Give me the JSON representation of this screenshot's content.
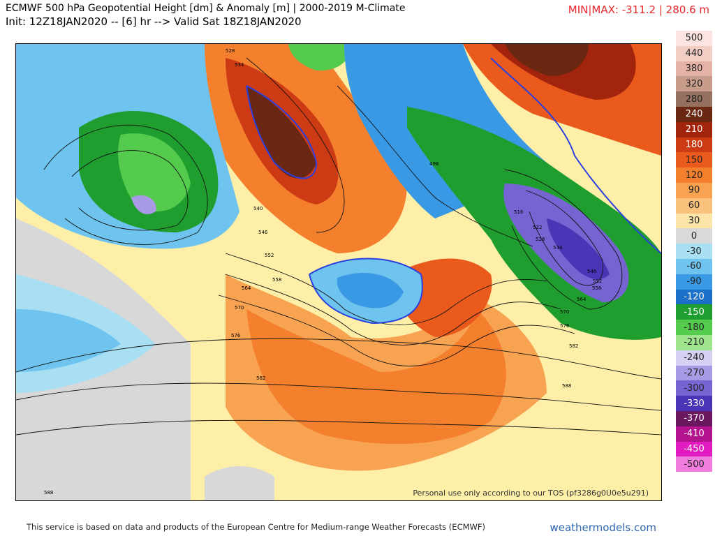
{
  "header": {
    "title": "ECMWF 500 hPa Geopotential Height [dm] & Anomaly [m] | 2000-2019 M-Climate",
    "init_line": "Init: 12Z18JAN2020 -- [6] hr --> Valid Sat 18Z18JAN2020",
    "minmax": "MIN|MAX: -311.2 | 280.6 m"
  },
  "legend": [
    {
      "label": "500",
      "color": "#fbe4e1"
    },
    {
      "label": "440",
      "color": "#f1cdc4"
    },
    {
      "label": "380",
      "color": "#e4b3a6"
    },
    {
      "label": "320",
      "color": "#c89c8b"
    },
    {
      "label": "280",
      "color": "#96705e"
    },
    {
      "label": "240",
      "color": "#6a2813"
    },
    {
      "label": "210",
      "color": "#a3240c"
    },
    {
      "label": "180",
      "color": "#cc3b14"
    },
    {
      "label": "150",
      "color": "#ea5a1d"
    },
    {
      "label": "120",
      "color": "#f4802e"
    },
    {
      "label": "90",
      "color": "#f7a352"
    },
    {
      "label": "60",
      "color": "#fac27d"
    },
    {
      "label": "30",
      "color": "#fbe5a8"
    },
    {
      "label": "0",
      "color": "#d9d9d9"
    },
    {
      "label": "-30",
      "color": "#a9dff3"
    },
    {
      "label": "-60",
      "color": "#6ec4ee"
    },
    {
      "label": "-90",
      "color": "#3a99e4"
    },
    {
      "label": "-120",
      "color": "#1c70c9"
    },
    {
      "label": "-150",
      "color": "#1f9e2f"
    },
    {
      "label": "-180",
      "color": "#54cb4d"
    },
    {
      "label": "-210",
      "color": "#9ee58d"
    },
    {
      "label": "-240",
      "color": "#d4d0f2"
    },
    {
      "label": "-270",
      "color": "#a99ae6"
    },
    {
      "label": "-300",
      "color": "#7764d3"
    },
    {
      "label": "-330",
      "color": "#4935b5"
    },
    {
      "label": "-370",
      "color": "#6b1760"
    },
    {
      "label": "-410",
      "color": "#b5128f"
    },
    {
      "label": "-450",
      "color": "#e21cc0"
    },
    {
      "label": "-500",
      "color": "#f07ddd"
    }
  ],
  "map": {
    "contour_labels": [
      "528",
      "534",
      "498",
      "516",
      "522",
      "528",
      "534",
      "540",
      "546",
      "552",
      "546",
      "552",
      "558",
      "564",
      "558",
      "564",
      "570",
      "576",
      "582",
      "570",
      "576",
      "582",
      "588",
      "588"
    ],
    "tos_text": "Personal use only according to our TOS (pf3286g0U0e5u291)"
  },
  "footer": {
    "source": "This service is based on data and products of the European Centre for Medium-range Weather Forecasts (ECMWF)",
    "brand": "weathermodels.com"
  }
}
